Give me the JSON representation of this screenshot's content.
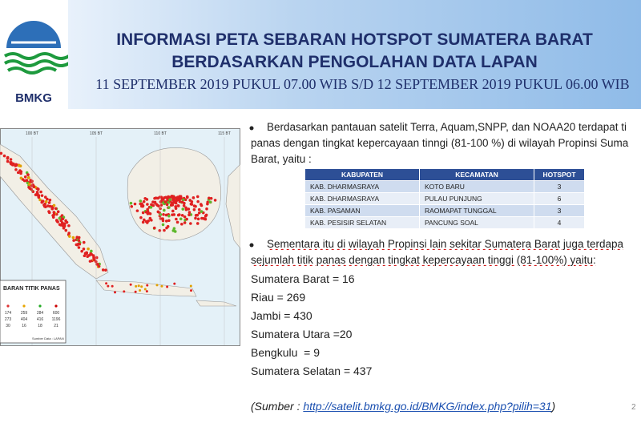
{
  "header": {
    "logo_text": "BMKG",
    "title_line1": "INFORMASI PETA SEBARAN HOTSPOT SUMATERA BARAT",
    "title_line2": "BERDASARKAN PENGOLAHAN DATA LAPAN",
    "subtitle": "11 SEPTEMBER 2019 PUKUL 07.00 WIB S/D 12 SEPTEMBER 2019 PUKUL 06.00 WIB"
  },
  "map": {
    "longitude_labels": [
      "100 BT",
      "105 BT",
      "110 BT",
      "115 BT"
    ],
    "legend": {
      "title": "BARAN TITIK PANAS",
      "rows": [
        [
          174,
          259,
          284,
          600
        ],
        [
          273,
          404,
          416,
          1196
        ],
        [
          30,
          16,
          18,
          21
        ]
      ],
      "source": "Sumber Data : LAPAN"
    }
  },
  "bullet1": {
    "lines": [
      "Berdasarkan pantauan satelit Terra, Aquam,SNPP, dan NOAA20 terdapat ti",
      "panas dengan tingkat kepercayaan tinngi (81-100 %) di wilayah Propinsi Suma",
      "Barat, yaitu :"
    ]
  },
  "table": {
    "headers": [
      "KABUPATEN",
      "KECAMATAN",
      "HOTSPOT"
    ],
    "rows": [
      [
        "KAB. DHARMASRAYA",
        "KOTO BARU",
        3
      ],
      [
        "KAB. DHARMASRAYA",
        "PULAU PUNJUNG",
        6
      ],
      [
        "KAB. PASAMAN",
        "RAOMAPAT TUNGGAL",
        3
      ],
      [
        "KAB. PESISIR SELATAN",
        "PANCUNG SOAL",
        4
      ]
    ]
  },
  "bullet2": {
    "lines": [
      "Sementara itu di wilayah Propinsi lain sekitar Sumatera Barat juga  terdapa",
      "sejumlah titik panas dengan tingkat kepercayaan tinggi (81-100%) yaitu:"
    ]
  },
  "province_counts": [
    "Sumatera Barat = 16",
    "Riau = 269",
    "Jambi = 430",
    "Sumatera Utara =20",
    "Bengkulu  = 9",
    "Sumatera Selatan = 437"
  ],
  "source": {
    "prefix": "(Sumber : ",
    "url": "http://satelit.bmkg.go.id/BMKG/index.php?pilih=31",
    "suffix": ")"
  },
  "page_number": "2"
}
